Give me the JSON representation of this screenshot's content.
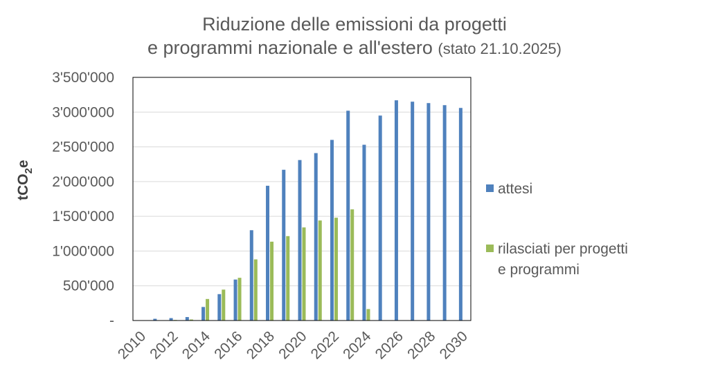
{
  "chart_data": {
    "type": "bar",
    "title_line1": "Riduzione delle emissioni da progetti",
    "title_line2": "e programmi nazionale e all'estero",
    "title_status": "(stato 21.10.2025)",
    "ylabel_main": "tCO",
    "ylabel_sub": "2",
    "ylabel_tail": "e",
    "xlabel": "",
    "ylim": [
      0,
      3500000
    ],
    "y_ticks": [
      0,
      500000,
      1000000,
      1500000,
      2000000,
      2500000,
      3000000,
      3500000
    ],
    "y_tick_labels": [
      "-",
      "500'000",
      "1'000'000",
      "1'500'000",
      "2'000'000",
      "2'500'000",
      "3'000'000",
      "3'500'000"
    ],
    "categories": [
      "2010",
      "2011",
      "2012",
      "2013",
      "2014",
      "2015",
      "2016",
      "2017",
      "2018",
      "2019",
      "2020",
      "2021",
      "2022",
      "2023",
      "2024",
      "2025",
      "2026",
      "2027",
      "2028",
      "2029",
      "2030"
    ],
    "x_tick_labels": [
      "2010",
      "",
      "2012",
      "",
      "2014",
      "",
      "2016",
      "",
      "2018",
      "",
      "2020",
      "",
      "2022",
      "",
      "2024",
      "",
      "2026",
      "",
      "2028",
      "",
      "2030"
    ],
    "grid": true,
    "legend_position": "right",
    "series": [
      {
        "name": "attesi",
        "color": "#4f81bd",
        "values": [
          0,
          25000,
          35000,
          50000,
          195000,
          380000,
          590000,
          1300000,
          1940000,
          2170000,
          2310000,
          2410000,
          2600000,
          3020000,
          2530000,
          2950000,
          3170000,
          3150000,
          3130000,
          3100000,
          3060000
        ]
      },
      {
        "name_line1": "rilasciati per progetti",
        "name_line2": "e programmi",
        "color": "#9bbb59",
        "values": [
          0,
          0,
          8000,
          15000,
          310000,
          445000,
          615000,
          880000,
          1135000,
          1215000,
          1340000,
          1440000,
          1480000,
          1600000,
          165000,
          0,
          0,
          0,
          0,
          0,
          0
        ]
      }
    ]
  }
}
